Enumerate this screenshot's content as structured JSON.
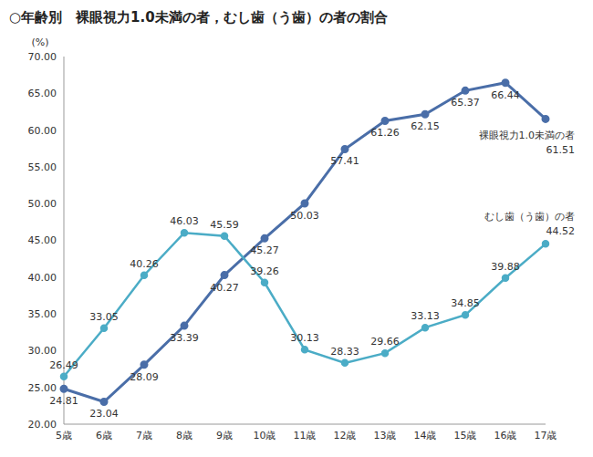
{
  "chart_data": {
    "type": "line",
    "title": "○年齢別　裸眼視力1.0未満の者，むし歯（う歯）の者の割合",
    "y_label": "(%)",
    "categories": [
      "5歳",
      "6歳",
      "7歳",
      "8歳",
      "9歳",
      "10歳",
      "11歳",
      "12歳",
      "13歳",
      "14歳",
      "15歳",
      "16歳",
      "17歳"
    ],
    "series": [
      {
        "name": "裸眼視力1.0未満の者",
        "color": "#4a6ea8",
        "marker": "o",
        "line_style": "solid",
        "values": [
          24.81,
          23.04,
          28.09,
          33.39,
          40.27,
          45.27,
          50.03,
          57.41,
          61.26,
          62.15,
          65.37,
          66.44,
          61.51
        ]
      },
      {
        "name": "むし歯（う歯）の者",
        "color": "#4bacc6",
        "marker": "o",
        "line_style": "solid",
        "values": [
          26.49,
          33.05,
          40.26,
          46.03,
          45.59,
          39.26,
          30.13,
          28.33,
          29.66,
          33.13,
          34.85,
          39.88,
          44.52
        ]
      }
    ],
    "ylim": [
      20,
      70
    ],
    "yticks": [
      {
        "value": 20,
        "label": "20.00"
      },
      {
        "value": 25,
        "label": "25.00"
      },
      {
        "value": 30,
        "label": "30.00"
      },
      {
        "value": 35,
        "label": "35.00"
      },
      {
        "value": 40,
        "label": "40.00"
      },
      {
        "value": 45,
        "label": "45.00"
      },
      {
        "value": 50,
        "label": "50.00"
      },
      {
        "value": 55,
        "label": "55.00"
      },
      {
        "value": 60,
        "label": "60.00"
      },
      {
        "value": 65,
        "label": "65.00"
      },
      {
        "value": 70,
        "label": "70.00"
      }
    ],
    "grid": false,
    "legend": "none",
    "data_labels": true
  }
}
